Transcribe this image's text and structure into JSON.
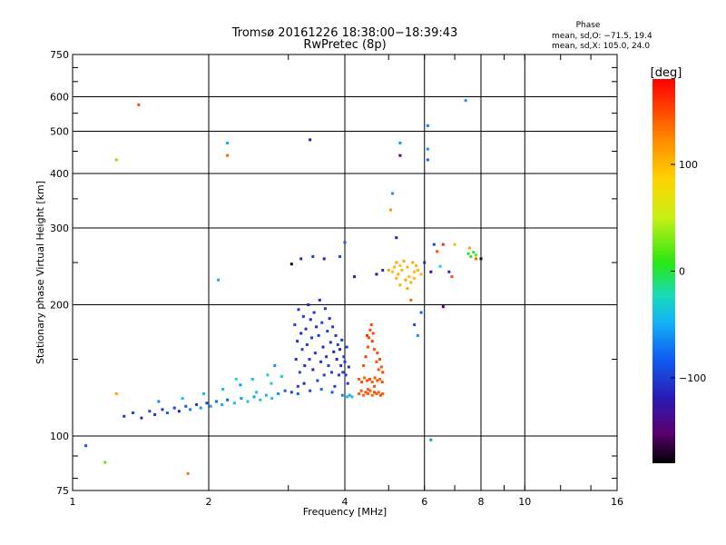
{
  "header": {
    "title_line1": "Tromsø 20161226 18:38:00−18:39:43",
    "title_line2": "RwPretec (8p)"
  },
  "phase_box": {
    "title": "Phase",
    "line1": "mean, sd,O: −71.5, 19.4",
    "line2": "mean, sd,X: 105.0, 24.0"
  },
  "chart_data": {
    "type": "scatter",
    "xlabel": "Frequency [MHz]",
    "ylabel": "Stationary phase Virtual Height [km]",
    "x_scale": "log",
    "y_scale": "log",
    "xlim": [
      1,
      16
    ],
    "ylim": [
      75,
      750
    ],
    "x_ticks": [
      1,
      2,
      4,
      6,
      8,
      10,
      16
    ],
    "x_tick_labels": [
      "1",
      "2",
      "4",
      "6",
      "8",
      "10",
      "16"
    ],
    "y_ticks": [
      75,
      100,
      200,
      300,
      400,
      500,
      600,
      750
    ],
    "y_tick_labels": [
      "75",
      "100",
      "200",
      "300",
      "400",
      "500",
      "600",
      "750"
    ],
    "grid": true,
    "colorbar": {
      "label": "[deg]",
      "range": [
        -180,
        180
      ],
      "ticks": [
        100,
        0,
        -100
      ],
      "tick_labels": [
        "100",
        "0",
        "−100"
      ],
      "colors": [
        "#000000",
        "#5a0070",
        "#2a1ab4",
        "#0f5cf0",
        "#14b4f5",
        "#1adcb4",
        "#28e614",
        "#c8f014",
        "#ffd200",
        "#ff8c00",
        "#ff3c00",
        "#ff0000"
      ]
    },
    "series": [
      {
        "values": [
          [
            1.3,
            111,
            -100
          ],
          [
            1.36,
            113,
            -95
          ],
          [
            1.42,
            110,
            -110
          ],
          [
            1.48,
            114,
            -90
          ],
          [
            1.52,
            112,
            -105
          ],
          [
            1.58,
            115,
            -100
          ],
          [
            1.62,
            113,
            -80
          ],
          [
            1.68,
            116,
            -95
          ],
          [
            1.72,
            114,
            -110
          ],
          [
            1.78,
            117,
            -85
          ],
          [
            1.82,
            115,
            -70
          ],
          [
            1.88,
            118,
            -100
          ],
          [
            1.92,
            116,
            -60
          ],
          [
            1.98,
            119,
            -90
          ],
          [
            2.02,
            117,
            -55
          ],
          [
            2.08,
            120,
            -75
          ],
          [
            2.14,
            118,
            -50
          ],
          [
            2.2,
            121,
            -80
          ],
          [
            2.28,
            119,
            -45
          ],
          [
            2.36,
            122,
            -60
          ],
          [
            2.44,
            120,
            -40
          ],
          [
            2.52,
            123,
            -55
          ],
          [
            2.6,
            121,
            -35
          ],
          [
            2.68,
            124,
            -50
          ],
          [
            2.76,
            122,
            -40
          ],
          [
            2.85,
            125,
            -60
          ],
          [
            2.95,
            127,
            -80
          ],
          [
            3.05,
            126,
            -100
          ],
          [
            3.15,
            130,
            -95
          ],
          [
            3.25,
            132,
            -110
          ],
          [
            1.55,
            120,
            -65
          ],
          [
            1.75,
            122,
            -45
          ],
          [
            1.95,
            125,
            -40
          ],
          [
            2.15,
            128,
            -45
          ],
          [
            2.35,
            131,
            -60
          ],
          [
            2.55,
            126,
            -35
          ],
          [
            2.75,
            132,
            -30
          ],
          [
            2.9,
            137,
            -25
          ]
        ]
      },
      {
        "values": [
          [
            3.1,
            180,
            -95
          ],
          [
            3.12,
            150,
            -105
          ],
          [
            3.14,
            165,
            -110
          ],
          [
            3.16,
            195,
            -100
          ],
          [
            3.18,
            140,
            -90
          ],
          [
            3.2,
            172,
            -115
          ],
          [
            3.22,
            158,
            -100
          ],
          [
            3.24,
            188,
            -95
          ],
          [
            3.26,
            145,
            -110
          ],
          [
            3.28,
            176,
            -105
          ],
          [
            3.3,
            162,
            -100
          ],
          [
            3.32,
            200,
            -115
          ],
          [
            3.34,
            150,
            -95
          ],
          [
            3.36,
            185,
            -110
          ],
          [
            3.38,
            168,
            -100
          ],
          [
            3.4,
            142,
            -120
          ],
          [
            3.42,
            192,
            -105
          ],
          [
            3.44,
            155,
            -100
          ],
          [
            3.46,
            178,
            -110
          ],
          [
            3.48,
            134,
            -95
          ],
          [
            3.5,
            170,
            -100
          ],
          [
            3.52,
            205,
            -110
          ],
          [
            3.54,
            148,
            -105
          ],
          [
            3.56,
            182,
            -95
          ],
          [
            3.58,
            160,
            -115
          ],
          [
            3.6,
            138,
            -100
          ],
          [
            3.62,
            196,
            -105
          ],
          [
            3.64,
            152,
            -110
          ],
          [
            3.66,
            174,
            -95
          ],
          [
            3.68,
            145,
            -100
          ],
          [
            3.7,
            186,
            -110
          ],
          [
            3.72,
            164,
            -105
          ],
          [
            3.74,
            140,
            -95
          ],
          [
            3.76,
            178,
            -100
          ],
          [
            3.78,
            156,
            -115
          ],
          [
            3.8,
            130,
            -100
          ],
          [
            3.82,
            170,
            -105
          ],
          [
            3.84,
            150,
            -110
          ],
          [
            3.86,
            162,
            -95
          ],
          [
            3.88,
            138,
            -100
          ],
          [
            3.9,
            158,
            -110
          ],
          [
            3.92,
            145,
            -105
          ],
          [
            3.94,
            166,
            -100
          ],
          [
            3.96,
            140,
            -95
          ],
          [
            3.98,
            152,
            -110
          ],
          [
            4.0,
            148,
            -100
          ],
          [
            4.02,
            138,
            -105
          ],
          [
            4.04,
            160,
            -95
          ],
          [
            4.06,
            132,
            -100
          ],
          [
            4.08,
            144,
            -110
          ],
          [
            3.15,
            125,
            -80
          ],
          [
            3.35,
            127,
            -90
          ],
          [
            3.55,
            128,
            -75
          ],
          [
            3.75,
            126,
            -85
          ],
          [
            3.95,
            124,
            -70
          ],
          [
            4.05,
            123,
            -45
          ],
          [
            4.1,
            124,
            -50
          ],
          [
            4.15,
            123,
            -40
          ]
        ]
      },
      {
        "values": [
          [
            4.3,
            125,
            140
          ],
          [
            4.35,
            127,
            145
          ],
          [
            4.4,
            124,
            138
          ],
          [
            4.45,
            126,
            150
          ],
          [
            4.5,
            125,
            142
          ],
          [
            4.55,
            127,
            148
          ],
          [
            4.6,
            124,
            140
          ],
          [
            4.65,
            126,
            152
          ],
          [
            4.7,
            125,
            145
          ],
          [
            4.75,
            126,
            138
          ],
          [
            4.8,
            124,
            150
          ],
          [
            4.85,
            125,
            143
          ],
          [
            4.3,
            135,
            145
          ],
          [
            4.36,
            133,
            150
          ],
          [
            4.42,
            136,
            140
          ],
          [
            4.48,
            134,
            148
          ],
          [
            4.54,
            135,
            152
          ],
          [
            4.6,
            133,
            142
          ],
          [
            4.66,
            136,
            146
          ],
          [
            4.72,
            134,
            150
          ],
          [
            4.78,
            135,
            140
          ],
          [
            4.84,
            133,
            148
          ],
          [
            4.4,
            145,
            150
          ],
          [
            4.45,
            152,
            155
          ],
          [
            4.5,
            160,
            145
          ],
          [
            4.52,
            168,
            150
          ],
          [
            4.55,
            175,
            152
          ],
          [
            4.58,
            180,
            148
          ],
          [
            4.48,
            170,
            160
          ],
          [
            4.6,
            165,
            155
          ],
          [
            4.62,
            172,
            150
          ],
          [
            4.65,
            158,
            145
          ],
          [
            4.7,
            148,
            150
          ],
          [
            4.72,
            155,
            152
          ],
          [
            4.75,
            142,
            148
          ],
          [
            4.78,
            150,
            150
          ],
          [
            4.82,
            144,
            145
          ],
          [
            4.85,
            140,
            152
          ],
          [
            4.5,
            128,
            140
          ],
          [
            4.65,
            130,
            148
          ]
        ]
      },
      {
        "values": [
          [
            5.1,
            238,
            95
          ],
          [
            5.15,
            244,
            100
          ],
          [
            5.2,
            250,
            110
          ],
          [
            5.25,
            235,
            105
          ],
          [
            5.3,
            246,
            95
          ],
          [
            5.35,
            240,
            100
          ],
          [
            5.4,
            252,
            108
          ],
          [
            5.45,
            228,
            112
          ],
          [
            5.5,
            244,
            102
          ],
          [
            5.55,
            232,
            96
          ],
          [
            5.6,
            225,
            105
          ],
          [
            5.65,
            250,
            110
          ],
          [
            5.7,
            238,
            98
          ],
          [
            5.75,
            246,
            100
          ],
          [
            5.3,
            222,
            104
          ],
          [
            5.5,
            218,
            108
          ],
          [
            5.7,
            230,
            102
          ],
          [
            5.8,
            240,
            96
          ],
          [
            5.9,
            235,
            100
          ],
          [
            5.2,
            230,
            104
          ],
          [
            7.5,
            262,
            0
          ],
          [
            7.6,
            258,
            10
          ],
          [
            7.7,
            264,
            -5
          ],
          [
            7.8,
            260,
            20
          ],
          [
            7.55,
            270,
            110
          ]
        ]
      },
      {
        "values": [
          [
            1.07,
            95,
            -90
          ],
          [
            1.18,
            87,
            20
          ],
          [
            1.25,
            125,
            110
          ],
          [
            1.25,
            430,
            30
          ],
          [
            1.4,
            575,
            150
          ],
          [
            1.8,
            82,
            130
          ],
          [
            2.2,
            470,
            -50
          ],
          [
            2.2,
            440,
            140
          ],
          [
            2.1,
            228,
            -50
          ],
          [
            2.3,
            135,
            -20
          ],
          [
            2.5,
            135,
            -40
          ],
          [
            2.7,
            138,
            -30
          ],
          [
            2.8,
            145,
            -60
          ],
          [
            3.05,
            248,
            -170
          ],
          [
            3.2,
            255,
            -110
          ],
          [
            3.35,
            478,
            -130
          ],
          [
            3.4,
            258,
            -100
          ],
          [
            3.6,
            255,
            -120
          ],
          [
            3.9,
            258,
            -90
          ],
          [
            4.0,
            278,
            -80
          ],
          [
            4.2,
            232,
            -120
          ],
          [
            4.7,
            235,
            -130
          ],
          [
            4.85,
            240,
            -110
          ],
          [
            5.0,
            240,
            110
          ],
          [
            5.05,
            330,
            120
          ],
          [
            5.1,
            360,
            -60
          ],
          [
            5.2,
            285,
            -120
          ],
          [
            5.3,
            470,
            -60
          ],
          [
            5.3,
            440,
            -150
          ],
          [
            5.6,
            205,
            140
          ],
          [
            5.7,
            180,
            -90
          ],
          [
            5.8,
            170,
            -60
          ],
          [
            5.9,
            192,
            -80
          ],
          [
            6.1,
            515,
            -70
          ],
          [
            6.1,
            455,
            -60
          ],
          [
            6.1,
            430,
            -80
          ],
          [
            6.2,
            98,
            -60
          ],
          [
            6.3,
            275,
            -90
          ],
          [
            6.4,
            265,
            150
          ],
          [
            6.5,
            245,
            -30
          ],
          [
            6.6,
            275,
            160
          ],
          [
            6.6,
            198,
            -150
          ],
          [
            6.8,
            238,
            -110
          ],
          [
            6.9,
            232,
            150
          ],
          [
            7.0,
            275,
            100
          ],
          [
            7.4,
            588,
            -60
          ],
          [
            7.8,
            255,
            140
          ],
          [
            8.0,
            255,
            -170
          ],
          [
            6.0,
            250,
            -110
          ],
          [
            6.2,
            238,
            -140
          ]
        ]
      }
    ]
  }
}
